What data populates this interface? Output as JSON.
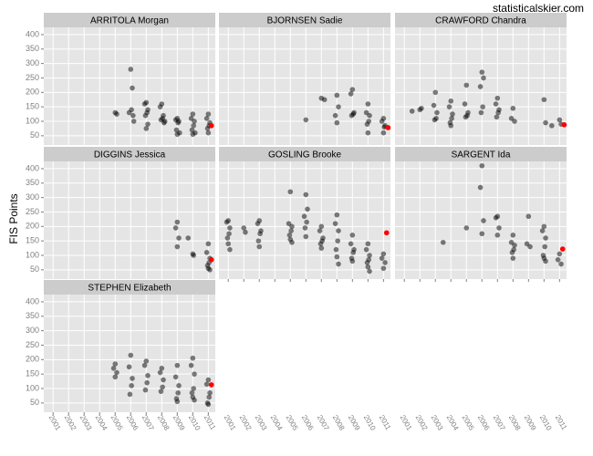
{
  "watermark": "statisticalskier.com",
  "y_label": "FIS Points",
  "chart_data": [
    {
      "type": "scatter",
      "title": "ARRITOLA Morgan",
      "xlim": [
        2000.4,
        2011.45
      ],
      "ylim": [
        18,
        425
      ],
      "xticks": [
        2001,
        2002,
        2003,
        2004,
        2005,
        2006,
        2007,
        2008,
        2009,
        2010,
        2011
      ],
      "yticks": [
        50,
        100,
        150,
        200,
        250,
        300,
        350,
        400
      ],
      "grid": true,
      "series": [
        {
          "color": "rgba(0,0,0,0.5)",
          "x": [
            2005.0,
            2005.1,
            2006.0,
            2006.1,
            2006.05,
            2005.9,
            2006.15,
            2006.2,
            2007.0,
            2006.9,
            2007.1,
            2007.05,
            2006.95,
            2007.1,
            2007.0,
            2008.0,
            2007.9,
            2008.1,
            2008.05,
            2007.95,
            2008.2,
            2008.15,
            2009.0,
            2008.9,
            2009.1,
            2009.05,
            2008.95,
            2009.15,
            2009.0,
            2010.0,
            2009.9,
            2010.1,
            2010.05,
            2009.95,
            2010.15,
            2010.0,
            2011.0,
            2010.9,
            2011.1,
            2011.05,
            2010.95,
            2011.0
          ],
          "values": [
            130,
            125,
            280,
            215,
            140,
            130,
            120,
            100,
            165,
            160,
            140,
            130,
            120,
            90,
            75,
            160,
            150,
            120,
            110,
            105,
            100,
            95,
            110,
            105,
            100,
            95,
            70,
            60,
            55,
            125,
            110,
            100,
            85,
            70,
            60,
            55,
            125,
            110,
            95,
            85,
            75,
            60
          ]
        },
        {
          "color": "#ff0000",
          "x": [
            2011.2
          ],
          "values": [
            85
          ]
        }
      ]
    },
    {
      "type": "scatter",
      "title": "BJORNSEN Sadie",
      "xlim": [
        2000.4,
        2011.45
      ],
      "ylim": [
        18,
        425
      ],
      "xticks": [
        2001,
        2002,
        2003,
        2004,
        2005,
        2006,
        2007,
        2008,
        2009,
        2010,
        2011
      ],
      "yticks": [
        50,
        100,
        150,
        200,
        250,
        300,
        350,
        400
      ],
      "grid": true,
      "series": [
        {
          "color": "rgba(0,0,0,0.5)",
          "x": [
            2006.0,
            2007.0,
            2007.2,
            2008.0,
            2008.1,
            2007.9,
            2008.0,
            2009.0,
            2008.9,
            2009.1,
            2009.05,
            2008.95,
            2010.0,
            2009.9,
            2010.1,
            2010.05,
            2009.95,
            2010.0,
            2011.0,
            2010.9,
            2011.1,
            2011.05,
            2011.0
          ],
          "values": [
            105,
            180,
            175,
            190,
            150,
            120,
            95,
            210,
            195,
            130,
            125,
            120,
            160,
            130,
            120,
            100,
            90,
            60,
            110,
            100,
            85,
            80,
            60
          ]
        },
        {
          "color": "#ff0000",
          "x": [
            2011.3
          ],
          "values": [
            78
          ]
        }
      ]
    },
    {
      "type": "scatter",
      "title": "CRAWFORD Chandra",
      "xlim": [
        2000.4,
        2011.45
      ],
      "ylim": [
        18,
        425
      ],
      "xticks": [
        2001,
        2002,
        2003,
        2004,
        2005,
        2006,
        2007,
        2008,
        2009,
        2010,
        2011
      ],
      "yticks": [
        50,
        100,
        150,
        200,
        250,
        300,
        350,
        400
      ],
      "grid": true,
      "series": [
        {
          "color": "rgba(0,0,0,0.5)",
          "x": [
            2001.5,
            2002.0,
            2002.1,
            2003.0,
            2002.9,
            2003.1,
            2003.05,
            2002.95,
            2004.0,
            2003.9,
            2004.1,
            2004.05,
            2003.95,
            2004.0,
            2005.0,
            2004.9,
            2005.1,
            2005.05,
            2004.95,
            2006.0,
            2006.1,
            2005.9,
            2006.05,
            2005.95,
            2007.0,
            2006.9,
            2007.1,
            2007.05,
            2006.95,
            2008.0,
            2007.9,
            2008.1,
            2010.0,
            2010.1,
            2010.5,
            2011.0,
            2011.1
          ],
          "values": [
            135,
            140,
            145,
            200,
            155,
            130,
            110,
            105,
            170,
            150,
            125,
            110,
            95,
            85,
            225,
            160,
            130,
            120,
            115,
            270,
            250,
            220,
            150,
            130,
            180,
            160,
            140,
            130,
            115,
            145,
            110,
            100,
            175,
            95,
            85,
            105,
            90
          ]
        },
        {
          "color": "#ff0000",
          "x": [
            2011.3
          ],
          "values": [
            88
          ]
        }
      ]
    },
    {
      "type": "scatter",
      "title": "DIGGINS Jessica",
      "xlim": [
        2000.4,
        2011.45
      ],
      "ylim": [
        18,
        425
      ],
      "xticks": [
        2001,
        2002,
        2003,
        2004,
        2005,
        2006,
        2007,
        2008,
        2009,
        2010,
        2011
      ],
      "yticks": [
        50,
        100,
        150,
        200,
        250,
        300,
        350,
        400
      ],
      "grid": true,
      "series": [
        {
          "color": "rgba(0,0,0,0.5)",
          "x": [
            2009.0,
            2008.9,
            2009.1,
            2009.0,
            2009.7,
            2010.0,
            2010.05,
            2011.0,
            2010.9,
            2011.1,
            2011.05,
            2010.95,
            2011.0,
            2011.1
          ],
          "values": [
            215,
            195,
            160,
            130,
            160,
            105,
            100,
            140,
            110,
            90,
            75,
            65,
            55,
            50
          ]
        },
        {
          "color": "#ff0000",
          "x": [
            2011.2
          ],
          "values": [
            85
          ]
        }
      ]
    },
    {
      "type": "scatter",
      "title": "GOSLING Brooke",
      "xlim": [
        2000.4,
        2011.45
      ],
      "ylim": [
        18,
        425
      ],
      "xticks": [
        2001,
        2002,
        2003,
        2004,
        2005,
        2006,
        2007,
        2008,
        2009,
        2010,
        2011
      ],
      "yticks": [
        50,
        100,
        150,
        200,
        250,
        300,
        350,
        400
      ],
      "grid": true,
      "series": [
        {
          "color": "rgba(0,0,0,0.5)",
          "x": [
            2001.0,
            2000.9,
            2001.1,
            2001.05,
            2000.95,
            2001.0,
            2001.1,
            2002.0,
            2002.1,
            2003.0,
            2002.9,
            2003.1,
            2003.05,
            2002.95,
            2003.0,
            2005.0,
            2004.9,
            2005.1,
            2005.05,
            2004.95,
            2005.0,
            2005.1,
            2006.0,
            2006.1,
            2005.9,
            2006.05,
            2005.95,
            2006.0,
            2007.0,
            2006.9,
            2007.1,
            2007.05,
            2006.95,
            2007.0,
            2008.0,
            2007.9,
            2008.1,
            2008.05,
            2007.95,
            2008.0,
            2008.1,
            2009.0,
            2008.9,
            2009.1,
            2009.05,
            2008.95,
            2009.0,
            2010.0,
            2009.9,
            2010.1,
            2010.05,
            2009.95,
            2010.0,
            2010.1,
            2011.0,
            2010.9,
            2011.1,
            2011.0
          ],
          "values": [
            220,
            215,
            195,
            175,
            160,
            140,
            120,
            195,
            180,
            220,
            210,
            185,
            175,
            150,
            130,
            320,
            210,
            200,
            185,
            170,
            155,
            145,
            310,
            260,
            235,
            215,
            195,
            165,
            200,
            185,
            160,
            150,
            140,
            125,
            240,
            210,
            185,
            150,
            120,
            95,
            70,
            170,
            140,
            120,
            110,
            90,
            80,
            140,
            120,
            100,
            85,
            75,
            60,
            45,
            105,
            90,
            75,
            55
          ]
        },
        {
          "color": "#ff0000",
          "x": [
            2011.2
          ],
          "values": [
            178
          ]
        }
      ]
    },
    {
      "type": "scatter",
      "title": "SARGENT Ida",
      "xlim": [
        2000.4,
        2011.45
      ],
      "ylim": [
        18,
        425
      ],
      "xticks": [
        2001,
        2002,
        2003,
        2004,
        2005,
        2006,
        2007,
        2008,
        2009,
        2010,
        2011
      ],
      "yticks": [
        50,
        100,
        150,
        200,
        250,
        300,
        350,
        400
      ],
      "grid": true,
      "series": [
        {
          "color": "rgba(0,0,0,0.5)",
          "x": [
            2003.5,
            2005.0,
            2006.0,
            2005.9,
            2006.1,
            2006.0,
            2007.0,
            2006.9,
            2007.1,
            2007.0,
            2008.0,
            2007.9,
            2008.1,
            2008.05,
            2007.95,
            2008.0,
            2009.0,
            2008.9,
            2009.1,
            2010.0,
            2009.9,
            2010.1,
            2010.05,
            2009.95,
            2010.0,
            2010.1,
            2011.0,
            2010.9,
            2011.1
          ],
          "values": [
            145,
            195,
            410,
            335,
            220,
            175,
            235,
            230,
            195,
            170,
            170,
            145,
            135,
            120,
            110,
            90,
            235,
            140,
            130,
            200,
            185,
            160,
            130,
            100,
            90,
            80,
            105,
            85,
            70
          ]
        },
        {
          "color": "#ff0000",
          "x": [
            2011.2
          ],
          "values": [
            122
          ]
        }
      ]
    },
    {
      "type": "scatter",
      "title": "STEPHEN Elizabeth",
      "xlim": [
        2000.4,
        2011.45
      ],
      "ylim": [
        18,
        425
      ],
      "xticks": [
        2001,
        2002,
        2003,
        2004,
        2005,
        2006,
        2007,
        2008,
        2009,
        2010,
        2011
      ],
      "yticks": [
        50,
        100,
        150,
        200,
        250,
        300,
        350,
        400
      ],
      "grid": true,
      "series": [
        {
          "color": "rgba(0,0,0,0.5)",
          "x": [
            2005.0,
            2004.9,
            2005.1,
            2005.0,
            2006.0,
            2005.9,
            2006.1,
            2006.05,
            2005.95,
            2007.0,
            2006.9,
            2007.1,
            2007.05,
            2006.95,
            2008.0,
            2007.9,
            2008.1,
            2008.05,
            2007.95,
            2009.0,
            2008.9,
            2009.1,
            2009.05,
            2008.95,
            2009.0,
            2010.0,
            2009.9,
            2010.1,
            2010.05,
            2009.95,
            2010.0,
            2010.1,
            2011.0,
            2010.9,
            2011.1,
            2011.05,
            2010.95,
            2011.0
          ],
          "values": [
            185,
            170,
            155,
            140,
            215,
            175,
            135,
            110,
            80,
            195,
            180,
            145,
            120,
            95,
            170,
            155,
            130,
            105,
            90,
            180,
            140,
            110,
            85,
            65,
            55,
            205,
            180,
            150,
            100,
            85,
            70,
            60,
            130,
            115,
            85,
            70,
            50,
            45
          ]
        },
        {
          "color": "#ff0000",
          "x": [
            2011.2
          ],
          "values": [
            113
          ]
        }
      ]
    }
  ]
}
